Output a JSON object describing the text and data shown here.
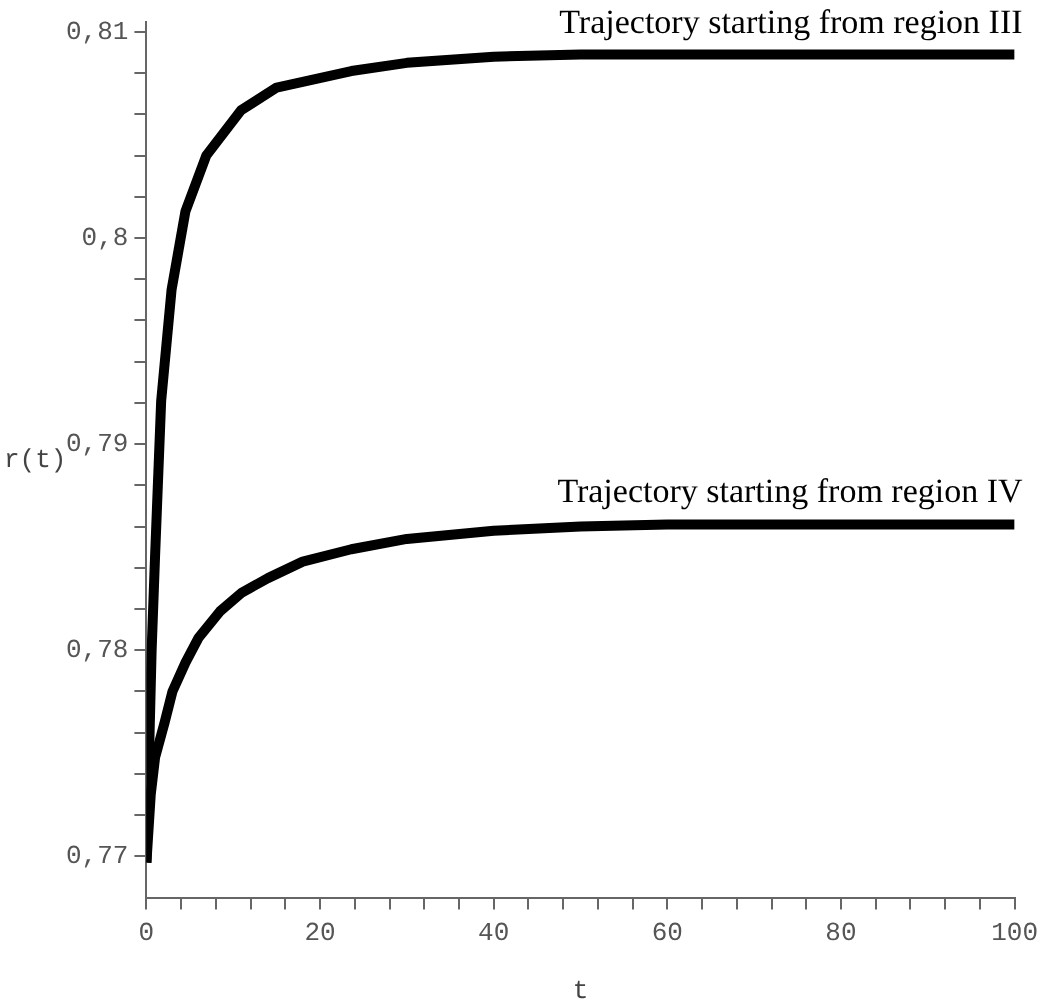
{
  "chart_data": {
    "type": "line",
    "xlabel": "t",
    "ylabel": "r(t)",
    "series": [
      {
        "color": "#000000",
        "x": [
          0,
          0.6,
          1,
          1.7,
          2.9,
          4.5,
          6.9,
          10.9,
          15,
          23.6,
          30,
          40,
          50,
          60,
          80,
          100
        ],
        "values": [
          0.7697,
          0.78,
          0.7846,
          0.7921,
          0.7975,
          0.8013,
          0.804,
          0.8062,
          0.8073,
          0.8081,
          0.8085,
          0.8088,
          0.8089,
          0.8089,
          0.8089,
          0.8089
        ]
      },
      {
        "color": "#000000",
        "x": [
          0,
          0.5,
          1,
          2.1,
          3,
          4.5,
          6,
          8.5,
          11,
          14,
          18,
          23.6,
          30,
          40,
          50,
          60,
          80,
          100
        ],
        "values": [
          0.7697,
          0.773,
          0.7748,
          0.7765,
          0.778,
          0.7794,
          0.7806,
          0.7819,
          0.7828,
          0.7835,
          0.7843,
          0.7849,
          0.7854,
          0.7858,
          0.786,
          0.7861,
          0.7861,
          0.7861
        ]
      }
    ],
    "annotations": [
      {
        "text": "Trajectory starting from region III",
        "x": 100,
        "y": 0.8089
      },
      {
        "text": "Trajectory starting from region IV",
        "x": 100,
        "y": 0.7861
      }
    ],
    "xlim": [
      0,
      100
    ],
    "xticks": [
      0,
      {
        "value": 4,
        "label": null
      },
      {
        "value": 8,
        "label": null
      },
      {
        "value": 12,
        "label": null
      },
      {
        "value": 16,
        "label": null
      },
      20,
      {
        "value": 24,
        "label": null
      },
      {
        "value": 28,
        "label": null
      },
      {
        "value": 32,
        "label": null
      },
      {
        "value": 36,
        "label": null
      },
      40,
      {
        "value": 44,
        "label": null
      },
      {
        "value": 48,
        "label": null
      },
      {
        "value": 52,
        "label": null
      },
      {
        "value": 56,
        "label": null
      },
      60,
      {
        "value": 64,
        "label": null
      },
      {
        "value": 68,
        "label": null
      },
      {
        "value": 72,
        "label": null
      },
      {
        "value": 76,
        "label": null
      },
      80,
      {
        "value": 84,
        "label": null
      },
      {
        "value": 88,
        "label": null
      },
      {
        "value": 92,
        "label": null
      },
      {
        "value": 96,
        "label": null
      },
      100
    ],
    "ylim": [
      0.768,
      0.8105
    ],
    "yticks": [
      {
        "value": 0.77,
        "label": "0,77"
      },
      {
        "value": 0.772,
        "label": null
      },
      {
        "value": 0.774,
        "label": null
      },
      {
        "value": 0.776,
        "label": null
      },
      {
        "value": 0.778,
        "label": null
      },
      {
        "value": 0.78,
        "label": "0,78"
      },
      {
        "value": 0.782,
        "label": null
      },
      {
        "value": 0.784,
        "label": null
      },
      {
        "value": 0.786,
        "label": null
      },
      {
        "value": 0.788,
        "label": null
      },
      {
        "value": 0.79,
        "label": "0,79"
      },
      {
        "value": 0.792,
        "label": null
      },
      {
        "value": 0.794,
        "label": null
      },
      {
        "value": 0.796,
        "label": null
      },
      {
        "value": 0.798,
        "label": null
      },
      {
        "value": 0.8,
        "label": "0,8"
      },
      {
        "value": 0.802,
        "label": null
      },
      {
        "value": 0.804,
        "label": null
      },
      {
        "value": 0.806,
        "label": null
      },
      {
        "value": 0.808,
        "label": null
      },
      {
        "value": 0.81,
        "label": "0,81"
      }
    ],
    "grid": false,
    "legend": false,
    "marker": "none",
    "line_style": "solid"
  }
}
